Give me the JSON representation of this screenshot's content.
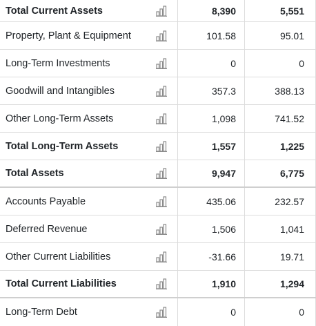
{
  "rows": [
    {
      "label": "Total Current Assets",
      "v1": "8,390",
      "v2": "5,551",
      "bold": true,
      "icon": "bar-chart-icon"
    },
    {
      "label": "Property, Plant & Equipment",
      "v1": "101.58",
      "v2": "95.01",
      "bold": false,
      "icon": "bar-chart-icon"
    },
    {
      "label": "Long-Term Investments",
      "v1": "0",
      "v2": "0",
      "bold": false,
      "icon": "bar-chart-icon"
    },
    {
      "label": "Goodwill and Intangibles",
      "v1": "357.3",
      "v2": "388.13",
      "bold": false,
      "icon": "bar-chart-icon"
    },
    {
      "label": "Other Long-Term Assets",
      "v1": "1,098",
      "v2": "741.52",
      "bold": false,
      "icon": "bar-chart-icon"
    },
    {
      "label": "Total Long-Term Assets",
      "v1": "1,557",
      "v2": "1,225",
      "bold": true,
      "icon": "bar-chart-icon"
    },
    {
      "label": "Total Assets",
      "v1": "9,947",
      "v2": "6,775",
      "bold": true,
      "icon": "bar-chart-icon"
    },
    {
      "label": "Accounts Payable",
      "v1": "435.06",
      "v2": "232.57",
      "bold": false,
      "icon": "bar-chart-icon"
    },
    {
      "label": "Deferred Revenue",
      "v1": "1,506",
      "v2": "1,041",
      "bold": false,
      "icon": "bar-chart-icon"
    },
    {
      "label": "Other Current Liabilities",
      "v1": "-31.66",
      "v2": "19.71",
      "bold": false,
      "icon": "bar-chart-icon"
    },
    {
      "label": "Total Current Liabilities",
      "v1": "1,910",
      "v2": "1,294",
      "bold": true,
      "icon": "bar-chart-icon"
    },
    {
      "label": "Long-Term Debt",
      "v1": "0",
      "v2": "0",
      "bold": false,
      "icon": "bar-chart-icon"
    }
  ],
  "colors": {
    "border": "#dcdcdc",
    "icon": "#8a8a8a",
    "text": "#212529"
  }
}
